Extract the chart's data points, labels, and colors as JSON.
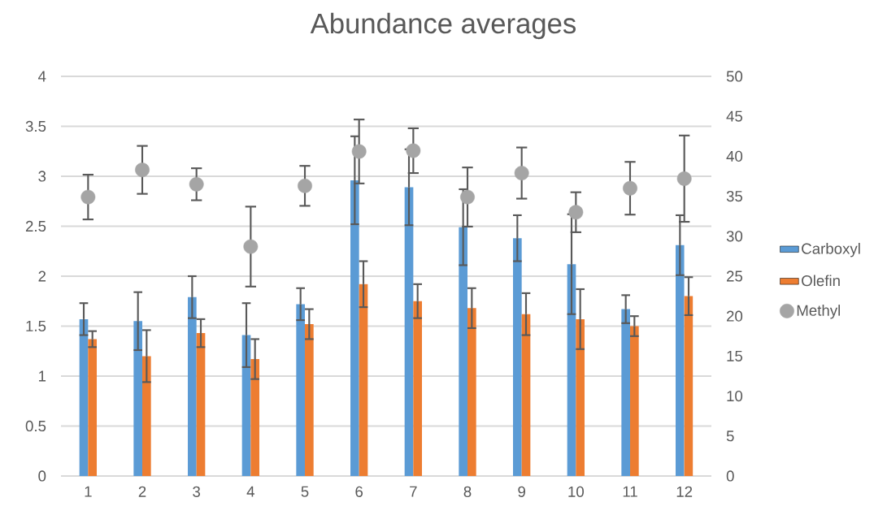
{
  "chart_data": {
    "type": "bar",
    "title": "Abundance averages",
    "categories": [
      "1",
      "2",
      "3",
      "4",
      "5",
      "6",
      "7",
      "8",
      "9",
      "10",
      "11",
      "12"
    ],
    "series": [
      {
        "name": "Carboxyl",
        "color": "#5b9bd5",
        "values": [
          1.57,
          1.55,
          1.79,
          1.41,
          1.72,
          2.96,
          2.89,
          2.49,
          2.38,
          2.12,
          1.67,
          2.31
        ],
        "errors": [
          0.16,
          0.29,
          0.21,
          0.32,
          0.16,
          0.44,
          0.38,
          0.38,
          0.23,
          0.5,
          0.14,
          0.3
        ]
      },
      {
        "name": "Olefin",
        "color": "#ed7d31",
        "values": [
          1.37,
          1.2,
          1.43,
          1.17,
          1.52,
          1.92,
          1.75,
          1.68,
          1.62,
          1.57,
          1.5,
          1.8
        ],
        "errors": [
          0.08,
          0.26,
          0.14,
          0.2,
          0.15,
          0.23,
          0.17,
          0.2,
          0.21,
          0.3,
          0.1,
          0.19
        ]
      },
      {
        "name": "Methyl",
        "type": "scatter",
        "axis": "y2",
        "color": "#a5a5a5",
        "values": [
          34.9,
          38.3,
          36.5,
          28.7,
          36.3,
          40.6,
          40.7,
          34.9,
          37.9,
          33.0,
          36.0,
          37.2
        ],
        "errors": [
          2.8,
          3.0,
          2.0,
          5.0,
          2.5,
          4.0,
          2.8,
          3.7,
          3.2,
          2.5,
          3.3,
          5.4
        ]
      }
    ],
    "ylim": [
      0,
      4
    ],
    "yticks": [
      0,
      0.5,
      1,
      1.5,
      2,
      2.5,
      3,
      3.5,
      4
    ],
    "y2lim": [
      0,
      50
    ],
    "y2ticks": [
      0,
      5,
      10,
      15,
      20,
      25,
      30,
      35,
      40,
      45,
      50
    ],
    "grid": "y",
    "legend": "right"
  }
}
